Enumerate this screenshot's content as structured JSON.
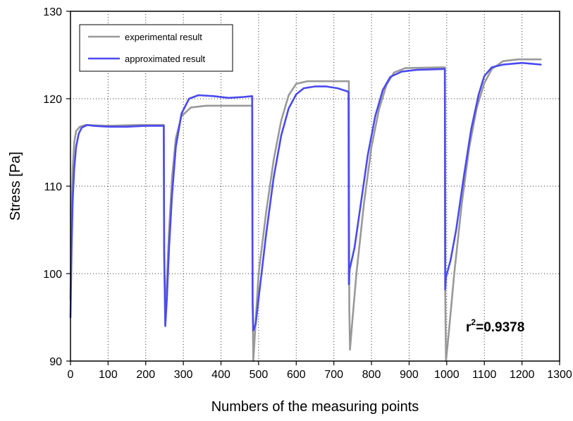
{
  "chart_data": {
    "type": "line",
    "title": "",
    "xlabel": "Numbers of the measuring points",
    "ylabel": "Stress [Pa]",
    "xlim": [
      0,
      1300
    ],
    "ylim": [
      90,
      130
    ],
    "xticks": [
      0,
      100,
      200,
      300,
      400,
      500,
      600,
      700,
      800,
      900,
      1000,
      1100,
      1200,
      1300
    ],
    "yticks": [
      90,
      100,
      110,
      120,
      130
    ],
    "grid": true,
    "legend_position": "top-left",
    "annotation": {
      "base": "r",
      "superscript": "2",
      "rest": "=0.9378"
    },
    "series": [
      {
        "name": "experimental result",
        "color": "#999999",
        "points": [
          [
            0,
            97
          ],
          [
            3,
            107
          ],
          [
            6,
            112
          ],
          [
            10,
            115
          ],
          [
            15,
            116.3
          ],
          [
            25,
            116.8
          ],
          [
            40,
            117.0
          ],
          [
            100,
            116.9
          ],
          [
            180,
            117.0
          ],
          [
            248,
            117.0
          ],
          [
            249,
            102
          ],
          [
            252,
            95
          ],
          [
            256,
            99
          ],
          [
            262,
            105
          ],
          [
            270,
            111
          ],
          [
            280,
            115.5
          ],
          [
            295,
            118
          ],
          [
            320,
            119.0
          ],
          [
            360,
            119.2
          ],
          [
            483,
            119.2
          ],
          [
            484,
            97
          ],
          [
            486,
            90
          ],
          [
            490,
            93
          ],
          [
            500,
            100
          ],
          [
            520,
            107
          ],
          [
            540,
            113
          ],
          [
            560,
            117.5
          ],
          [
            580,
            120.4
          ],
          [
            600,
            121.7
          ],
          [
            630,
            122.0
          ],
          [
            740,
            122.0
          ],
          [
            741,
            96
          ],
          [
            743,
            91.3
          ],
          [
            748,
            94
          ],
          [
            760,
            100
          ],
          [
            780,
            108
          ],
          [
            800,
            114.5
          ],
          [
            820,
            118.8
          ],
          [
            840,
            121.6
          ],
          [
            860,
            123.0
          ],
          [
            890,
            123.5
          ],
          [
            995,
            123.6
          ],
          [
            996,
            98
          ],
          [
            998,
            90
          ],
          [
            1005,
            93
          ],
          [
            1020,
            100
          ],
          [
            1040,
            108
          ],
          [
            1060,
            114.5
          ],
          [
            1080,
            119
          ],
          [
            1100,
            121.8
          ],
          [
            1120,
            123.4
          ],
          [
            1150,
            124.3
          ],
          [
            1190,
            124.5
          ],
          [
            1250,
            124.5
          ]
        ]
      },
      {
        "name": "approximated result",
        "color": "#4a4af0",
        "points": [
          [
            0,
            95
          ],
          [
            3,
            103
          ],
          [
            6,
            108.5
          ],
          [
            10,
            112
          ],
          [
            15,
            114.5
          ],
          [
            22,
            116
          ],
          [
            30,
            116.7
          ],
          [
            45,
            117.0
          ],
          [
            60,
            116.9
          ],
          [
            100,
            116.8
          ],
          [
            150,
            116.8
          ],
          [
            200,
            116.9
          ],
          [
            248,
            116.9
          ],
          [
            249,
            103
          ],
          [
            252,
            94
          ],
          [
            256,
            97
          ],
          [
            262,
            103
          ],
          [
            270,
            109
          ],
          [
            280,
            114.5
          ],
          [
            295,
            118.3
          ],
          [
            315,
            120.0
          ],
          [
            340,
            120.4
          ],
          [
            380,
            120.3
          ],
          [
            420,
            120.1
          ],
          [
            460,
            120.2
          ],
          [
            483,
            120.3
          ],
          [
            484,
            97
          ],
          [
            486,
            93.5
          ],
          [
            492,
            94.2
          ],
          [
            505,
            99
          ],
          [
            520,
            104.5
          ],
          [
            540,
            111
          ],
          [
            560,
            115.8
          ],
          [
            580,
            118.9
          ],
          [
            600,
            120.5
          ],
          [
            620,
            121.2
          ],
          [
            650,
            121.4
          ],
          [
            680,
            121.4
          ],
          [
            710,
            121.2
          ],
          [
            739,
            120.8
          ],
          [
            740,
            98.8
          ],
          [
            742,
            100.5
          ],
          [
            755,
            103
          ],
          [
            770,
            107.5
          ],
          [
            790,
            113.5
          ],
          [
            810,
            118
          ],
          [
            830,
            121
          ],
          [
            850,
            122.5
          ],
          [
            880,
            123.1
          ],
          [
            920,
            123.3
          ],
          [
            995,
            123.4
          ],
          [
            996,
            98.2
          ],
          [
            998,
            99.6
          ],
          [
            1010,
            101.5
          ],
          [
            1025,
            105
          ],
          [
            1045,
            111
          ],
          [
            1065,
            116.5
          ],
          [
            1085,
            120.5
          ],
          [
            1100,
            122.6
          ],
          [
            1120,
            123.6
          ],
          [
            1150,
            123.9
          ],
          [
            1200,
            124.1
          ],
          [
            1250,
            123.9
          ]
        ]
      }
    ]
  }
}
